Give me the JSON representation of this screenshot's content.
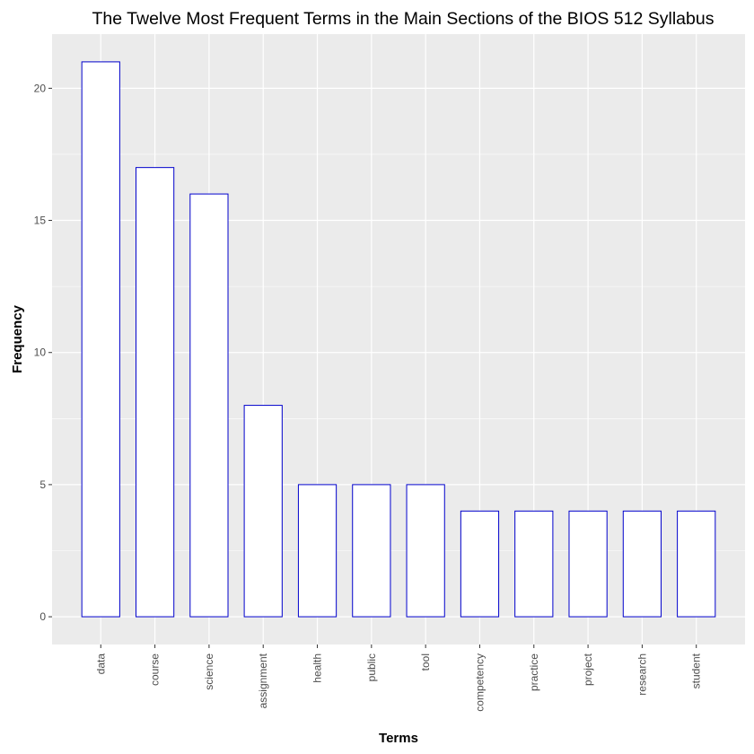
{
  "chart_data": {
    "type": "bar",
    "title": "The Twelve Most Frequent Terms in the Main Sections of the BIOS 512 Syllabus",
    "xlabel": "Terms",
    "ylabel": "Frequency",
    "categories": [
      "data",
      "course",
      "science",
      "assignment",
      "health",
      "public",
      "tool",
      "competency",
      "practice",
      "project",
      "research",
      "student"
    ],
    "values": [
      21,
      17,
      16,
      8,
      5,
      5,
      5,
      4,
      4,
      4,
      4,
      4
    ],
    "yticks": [
      0,
      5,
      10,
      15,
      20
    ],
    "ylim": [
      -1.05,
      22.05
    ],
    "grid": true,
    "legend": "none",
    "colors": {
      "panel_background": "#ebebeb",
      "grid": "#ffffff",
      "bar_fill": "#ffffff",
      "bar_outline": "#0000cc",
      "tick_text": "#4d4d4d"
    }
  }
}
